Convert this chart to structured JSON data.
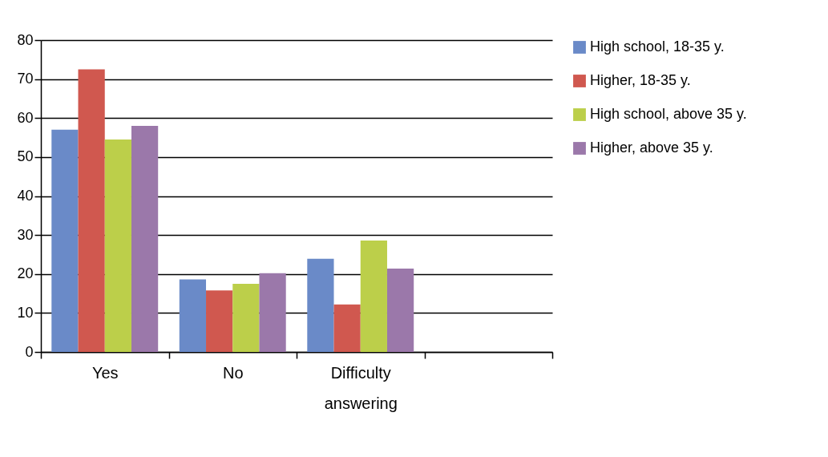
{
  "chart_data": {
    "type": "bar",
    "categories": [
      "Yes",
      "No",
      "Difficulty answering",
      null
    ],
    "series": [
      {
        "name": "High school, 18-35 y.",
        "color": "#6a8ac8",
        "values": [
          57,
          18.6,
          23.9,
          null
        ]
      },
      {
        "name": "Higher, 18-35 y.",
        "color": "#d0584f",
        "values": [
          72.5,
          15.8,
          12.2,
          null
        ]
      },
      {
        "name": "High school, above 35 y.",
        "color": "#bccf4a",
        "values": [
          54.5,
          17.5,
          28.6,
          null
        ]
      },
      {
        "name": "Higher, above 35 y.",
        "color": "#9b78aa",
        "values": [
          58,
          20.2,
          21.4,
          null
        ]
      }
    ],
    "ylim": [
      0,
      80
    ],
    "yticks": [
      0,
      10,
      20,
      30,
      40,
      50,
      60,
      70,
      80
    ],
    "grid": "y",
    "legend": "right"
  }
}
